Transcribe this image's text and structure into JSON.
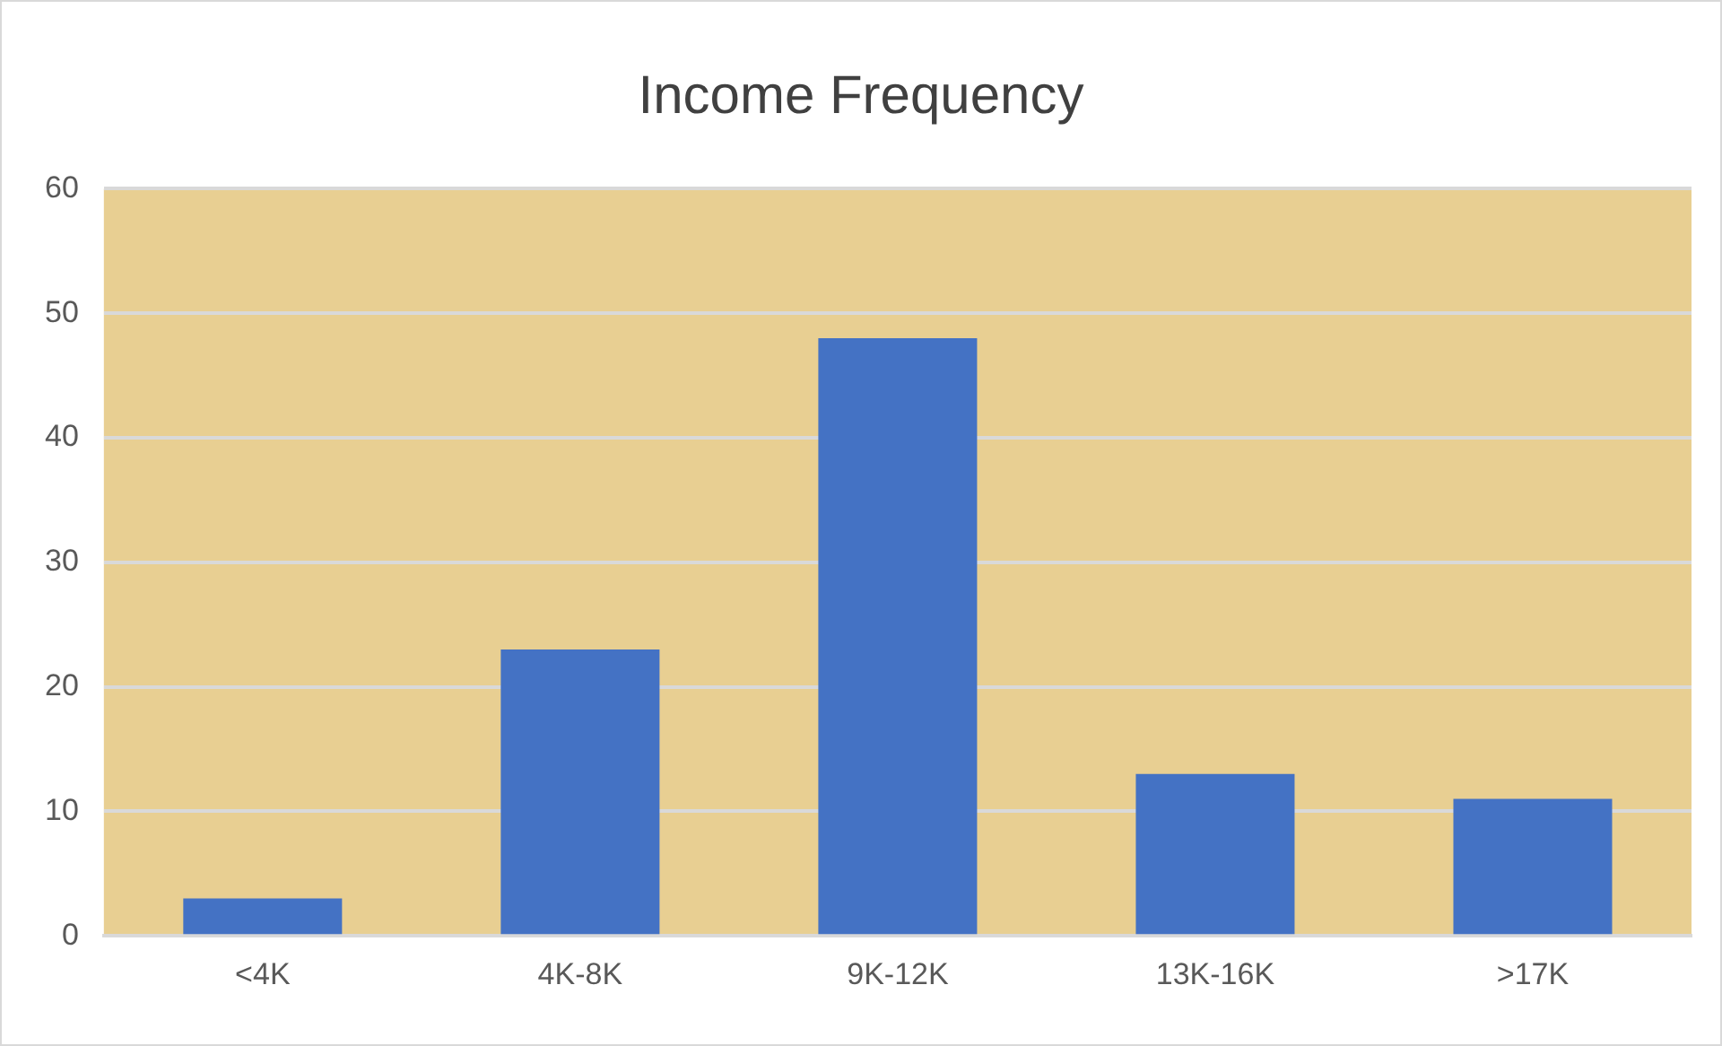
{
  "chart_data": {
    "type": "bar",
    "title": "Income Frequency",
    "categories": [
      "<4K",
      "4K-8K",
      "9K-12K",
      "13K-16K",
      ">17K"
    ],
    "values": [
      3,
      23,
      48,
      13,
      11
    ],
    "color": "#4472c4",
    "ylim": [
      0,
      60
    ],
    "yticks": [
      0,
      10,
      20,
      30,
      40,
      50,
      60
    ],
    "grid": "y",
    "legend": false
  }
}
